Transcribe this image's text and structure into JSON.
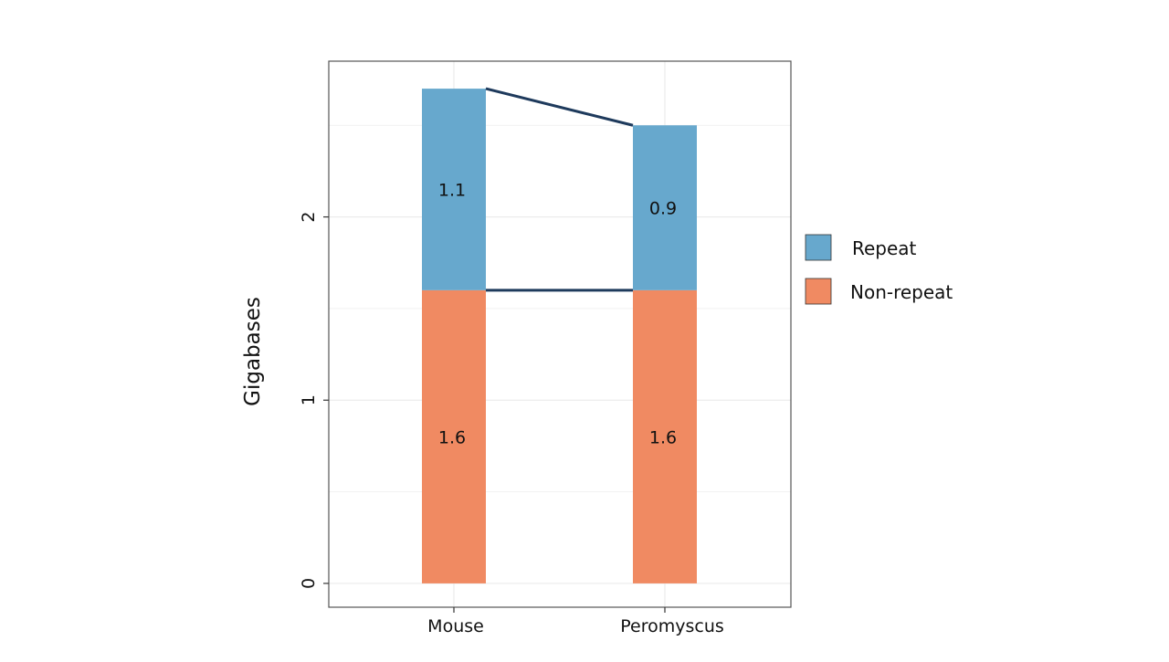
{
  "chart_data": {
    "type": "bar",
    "stacked": true,
    "categories": [
      "Mouse",
      "Peromyscus"
    ],
    "series": [
      {
        "name": "Non-repeat",
        "values": [
          1.6,
          1.6
        ],
        "labels": [
          "1.6",
          "1.6"
        ],
        "color": "#F08A62"
      },
      {
        "name": "Repeat",
        "values": [
          1.1,
          0.9
        ],
        "labels": [
          "1.1",
          "0.9"
        ],
        "color": "#67A8CD"
      }
    ],
    "xlabel": "",
    "ylabel": "Gigabases",
    "ylim": [
      -0.13,
      2.85
    ],
    "yticks": [
      0,
      1,
      2
    ],
    "ytick_labels": [
      "0",
      "1",
      "2"
    ],
    "grid": true,
    "legend_position": "right",
    "connector_color": "#1E3A5C"
  }
}
